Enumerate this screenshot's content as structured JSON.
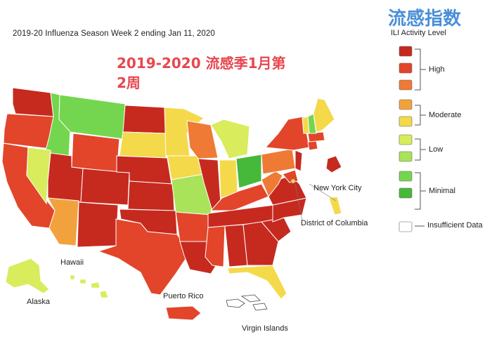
{
  "title_en": "2019-20 Influenza Season Week 2 ending Jan 11, 2020",
  "title_cn_line1": "2019-2020 流感季1月第",
  "title_cn_line2": "2周",
  "legend": {
    "title_cn": "流感指数",
    "subtitle": "ILI Activity Level",
    "swatches": [
      "#c62a1f",
      "#e2452a",
      "#ee7a35",
      "#f2a23c",
      "#f4d94a",
      "#d8ec5c",
      "#a8e35a",
      "#74d64e",
      "#46b83a",
      "#ffffff"
    ],
    "groups": [
      {
        "label": "High"
      },
      {
        "label": "Moderate"
      },
      {
        "label": "Low"
      },
      {
        "label": "Minimal"
      }
    ],
    "insufficient_label": "Insufficient Data"
  },
  "labels": {
    "new_york_city": "New York City",
    "district_of_columbia": "District of Columbia",
    "hawaii": "Hawaii",
    "alaska": "Alaska",
    "puerto_rico": "Puerto Rico",
    "virgin_islands": "Virgin Islands"
  },
  "colors": {
    "high_dark": "#c62a1f",
    "high": "#e2452a",
    "high_light": "#ee7a35",
    "moderate": "#f2a23c",
    "moderate_light": "#f4d94a",
    "low": "#d8ec5c",
    "minimal_light": "#a8e35a",
    "minimal": "#74d64e",
    "minimal_dark": "#46b83a",
    "insufficient": "#ffffff",
    "title_cn": "#e8474f",
    "legend_title_cn": "#4a8fd8"
  }
}
